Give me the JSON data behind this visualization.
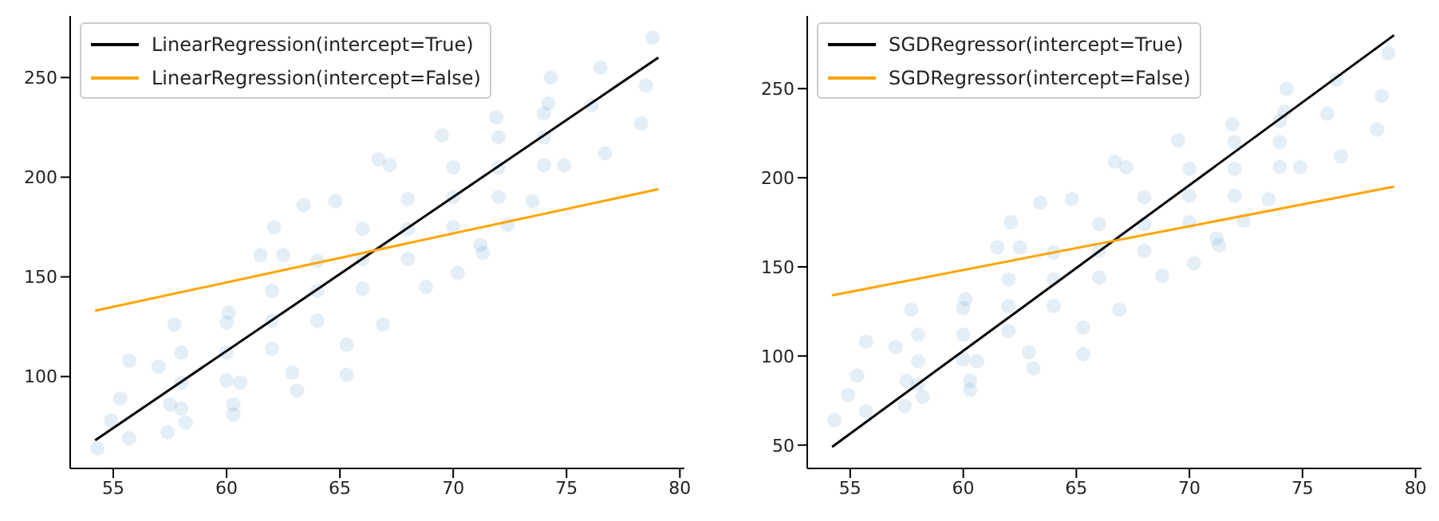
{
  "chart_data": [
    {
      "type": "scatter",
      "xlim": [
        53.1,
        80.2
      ],
      "ylim": [
        53.9,
        280.9
      ],
      "xticks": [
        55,
        60,
        65,
        70,
        75,
        80
      ],
      "yticks": [
        100,
        150,
        200,
        250
      ],
      "grid": false,
      "legend": "top left",
      "series": [
        {
          "color": "#1f77b4",
          "marker": "circle",
          "x": [
            54.3,
            54.9,
            55.7,
            55.3,
            57.4,
            58.2,
            55.7,
            57.7,
            60.3,
            60.3,
            63.4,
            62.1,
            61.5,
            65.3,
            63.1,
            66.7,
            70.2,
            71.3,
            72.4,
            78.8,
            78.3,
            78.5,
            76.5,
            76.7,
            74.3,
            57.0,
            60.1,
            62.5,
            64.8,
            67.2,
            69.5,
            71.9,
            74.2,
            76.1,
            57.5,
            60.6,
            62.9,
            65.3,
            66.9,
            68.8,
            71.2,
            73.5,
            74.9,
            58,
            60,
            62,
            64,
            66,
            68,
            70,
            72,
            74,
            58,
            60,
            62,
            64,
            66,
            68,
            70,
            72,
            74,
            58,
            60,
            62,
            64,
            66,
            68,
            70,
            72,
            74
          ],
          "values": [
            64,
            78,
            69,
            89,
            72,
            77,
            108,
            126,
            86,
            81,
            186,
            175,
            161,
            101,
            93,
            209,
            152,
            162,
            176,
            270,
            227,
            246,
            255,
            212,
            250,
            105,
            132,
            161,
            188,
            206,
            221,
            230,
            237,
            236,
            86,
            97,
            102,
            116,
            126,
            145,
            166,
            188,
            206,
            97,
            112,
            128,
            143,
            159,
            174,
            190,
            205,
            220,
            112,
            127,
            143,
            158,
            174,
            189,
            205,
            220,
            232,
            84,
            98,
            114,
            128,
            144,
            159,
            175,
            190,
            206
          ]
        },
        {
          "type": "line",
          "name": "LinearRegression(intercept=True)",
          "color": "#000000",
          "marker": "none",
          "x": [
            54.2,
            79.05
          ],
          "values": [
            68,
            260
          ]
        },
        {
          "type": "line",
          "name": "LinearRegression(intercept=False)",
          "color": "#ffa500",
          "marker": "none",
          "x": [
            54.2,
            79.05
          ],
          "values": [
            133,
            194
          ]
        }
      ]
    },
    {
      "type": "scatter",
      "xlim": [
        53.1,
        80.26
      ],
      "ylim": [
        36.9,
        290.8
      ],
      "xticks": [
        55,
        60,
        65,
        70,
        75,
        80
      ],
      "yticks": [
        50,
        100,
        150,
        200,
        250
      ],
      "grid": false,
      "legend": "top left",
      "series": [
        {
          "color": "#1f77b4",
          "marker": "circle",
          "x": [
            54.3,
            54.9,
            55.7,
            55.3,
            57.4,
            58.2,
            55.7,
            57.7,
            60.3,
            60.3,
            63.4,
            62.1,
            61.5,
            65.3,
            63.1,
            66.7,
            70.2,
            71.3,
            72.4,
            78.8,
            78.3,
            78.5,
            76.5,
            76.7,
            74.3,
            57.0,
            60.1,
            62.5,
            64.8,
            67.2,
            69.5,
            71.9,
            74.2,
            76.1,
            57.5,
            60.6,
            62.9,
            65.3,
            66.9,
            68.8,
            71.2,
            73.5,
            74.9,
            58,
            60,
            62,
            64,
            66,
            68,
            70,
            72,
            74,
            58,
            60,
            62,
            64,
            66,
            68,
            70,
            72,
            74,
            58,
            60,
            62,
            64,
            66,
            68,
            70,
            72,
            74
          ],
          "values": [
            64,
            78,
            69,
            89,
            72,
            77,
            108,
            126,
            86,
            81,
            186,
            175,
            161,
            101,
            93,
            209,
            152,
            162,
            176,
            270,
            227,
            246,
            255,
            212,
            250,
            105,
            132,
            161,
            188,
            206,
            221,
            230,
            237,
            236,
            86,
            97,
            102,
            116,
            126,
            145,
            166,
            188,
            206,
            97,
            112,
            128,
            143,
            159,
            174,
            190,
            205,
            220,
            112,
            127,
            143,
            158,
            174,
            189,
            205,
            220,
            232,
            84,
            98,
            114,
            128,
            144,
            159,
            175,
            190,
            206
          ]
        },
        {
          "type": "line",
          "name": "SGDRegressor(intercept=True)",
          "color": "#000000",
          "marker": "none",
          "x": [
            54.2,
            79.05
          ],
          "values": [
            49,
            280
          ]
        },
        {
          "type": "line",
          "name": "SGDRegressor(intercept=False)",
          "color": "#ffa500",
          "marker": "none",
          "x": [
            54.2,
            79.05
          ],
          "values": [
            134,
            195
          ]
        }
      ]
    }
  ]
}
